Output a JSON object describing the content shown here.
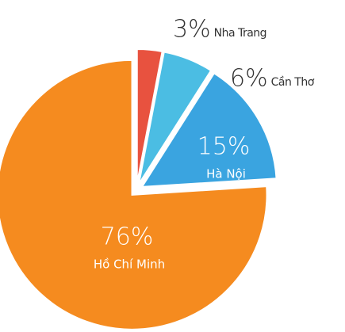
{
  "chart_data": {
    "type": "pie",
    "categories": [
      "Nha Trang",
      "Cần Thơ",
      "Hà Nội",
      "Hồ Chí Minh"
    ],
    "values": [
      3,
      6,
      15,
      76
    ],
    "value_labels": [
      "3%",
      "6%",
      "15%",
      "76%"
    ],
    "colors": [
      "#e8523f",
      "#4bbde3",
      "#3aa4e0",
      "#f58b1f"
    ]
  }
}
